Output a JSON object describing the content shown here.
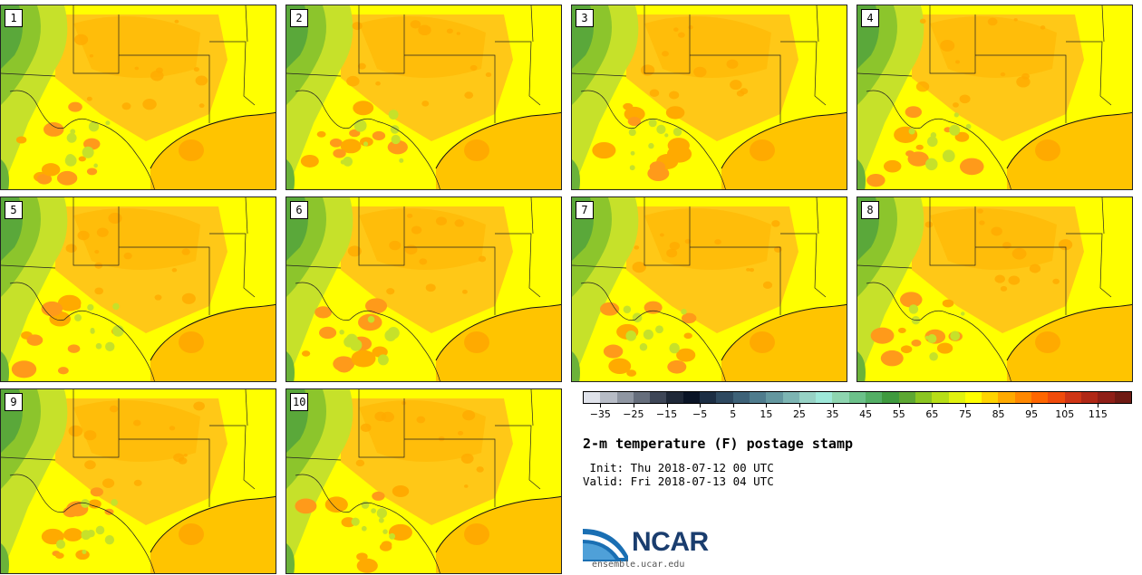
{
  "stamps": [
    {
      "label": "1"
    },
    {
      "label": "2"
    },
    {
      "label": "3"
    },
    {
      "label": "4"
    },
    {
      "label": "5"
    },
    {
      "label": "6"
    },
    {
      "label": "7"
    },
    {
      "label": "8"
    },
    {
      "label": "9"
    },
    {
      "label": "10"
    }
  ],
  "colorbar": {
    "colors": [
      "#dfe2ea",
      "#b7bcc6",
      "#8f96a2",
      "#666e7c",
      "#3e4657",
      "#1f2838",
      "#0a1426",
      "#1c2e44",
      "#2e4960",
      "#3e6278",
      "#4f7c8d",
      "#64979f",
      "#7db5b3",
      "#97d2c5",
      "#9ee8d9",
      "#8ed5b0",
      "#6cc18a",
      "#53ae65",
      "#3f9a3f",
      "#5da733",
      "#8bc521",
      "#b7de17",
      "#e1f20f",
      "#ffff00",
      "#ffd400",
      "#ffaa00",
      "#ff8800",
      "#ff6600",
      "#f04b0b",
      "#cf3515",
      "#b02816",
      "#8f1f17",
      "#6f1a13"
    ],
    "tick_labels": [
      "−35",
      "−25",
      "−15",
      "−5",
      "5",
      "15",
      "25",
      "35",
      "45",
      "55",
      "65",
      "75",
      "85",
      "95",
      "105",
      "115"
    ]
  },
  "title": "2-m temperature (F) postage stamp",
  "init": " Init: Thu 2018-07-12 00 UTC",
  "valid": "Valid: Fri 2018-07-13 04 UTC",
  "logo": {
    "name": "NCAR",
    "url": "ensemble.ucar.edu"
  }
}
